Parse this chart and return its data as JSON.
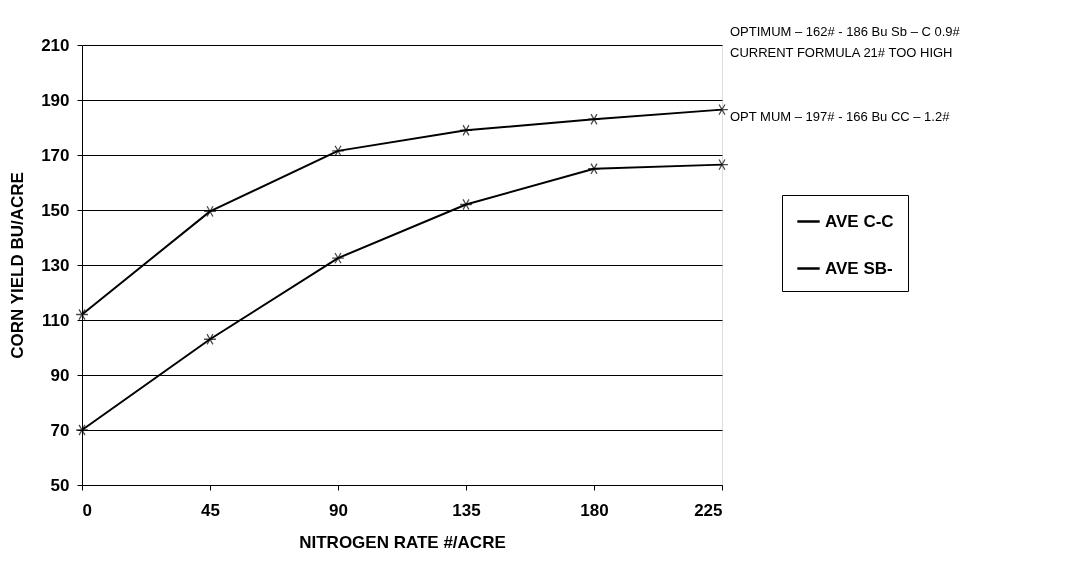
{
  "chart_data": {
    "type": "line",
    "xlabel": "NITROGEN RATE #/ACRE",
    "ylabel": "CORN YIELD BU/ACRE",
    "x": [
      0,
      45,
      90,
      135,
      180,
      225
    ],
    "series": [
      {
        "name": "AVE C-C",
        "color": "#000000",
        "values": [
          70,
          103,
          132.5,
          152,
          165,
          166.5
        ]
      },
      {
        "name": "AVE SB-",
        "color": "#000000",
        "values": [
          112,
          149.5,
          171.5,
          179,
          183,
          186.5
        ]
      }
    ],
    "xlim": [
      0,
      225
    ],
    "xticks": [
      0,
      45,
      90,
      135,
      180,
      225
    ],
    "ylim": [
      50,
      210
    ],
    "yticks": [
      50,
      70,
      90,
      110,
      130,
      150,
      170,
      190,
      210
    ],
    "grid": "y",
    "legend": "right",
    "marker": "cross",
    "line_style": "solid",
    "annotations": [
      "OPTIMUM – 162# - 186 Bu  Sb – C 0.9#",
      "CURRENT FORMULA 21# TOO HIGH",
      "OPT MUM – 197# - 166 Bu  CC – 1.2#"
    ]
  }
}
